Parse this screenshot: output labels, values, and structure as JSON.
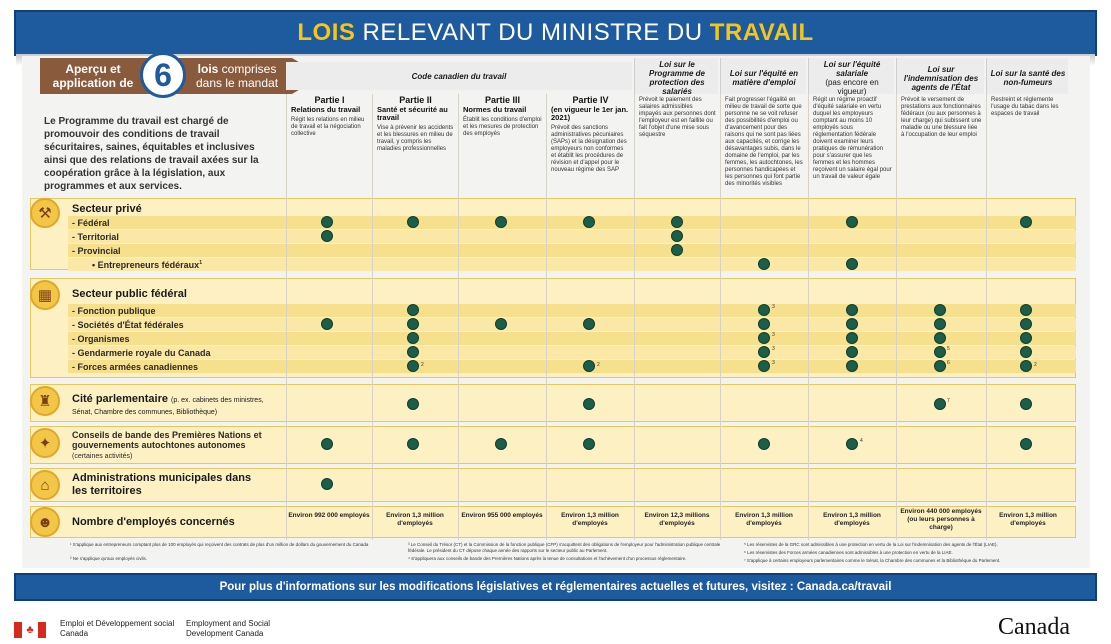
{
  "title": {
    "bold1": "LOIS",
    "mid": " RELEVANT DU MINISTRE DU ",
    "bold2": "TRAVAIL"
  },
  "apercu": {
    "left": "Aperçu et application de",
    "number": "6",
    "right_bold": "lois",
    "right": " comprises dans le mandat"
  },
  "intro": "Le Programme du travail est chargé de promouvoir des conditions de travail sécuritaires, saines, équitables et inclusives ainsi que des relations de travail axées sur la coopération grâce à la législation, aux programmes et aux services.",
  "code_header": "Code canadien du travail",
  "law_headers": [
    "Loi sur le Programme de protection des salariés",
    "Loi sur l'équité en matière d'emploi",
    "Loi sur l'équité salariale",
    "Loi sur l'indemnisation des agents de l'État",
    "Loi sur la santé des non-fumeurs"
  ],
  "equite_salariale_note": "(pas encore en vigueur)",
  "parts": [
    {
      "title": "Partie I",
      "subtitle": "Relations du travail",
      "desc": "Régit les relations en milieu de travail et la négociation collective"
    },
    {
      "title": "Partie II",
      "subtitle": "Santé et sécurité au travail",
      "desc": "Vise à prévenir les accidents et les blessures en milieu de travail, y compris les maladies professionnelles"
    },
    {
      "title": "Partie III",
      "subtitle": "Normes du travail",
      "desc": "Établit les conditions d'emploi et les mesures de protection des employés"
    },
    {
      "title": "Partie IV",
      "subtitle": "(en vigueur le 1er jan. 2021)",
      "desc": "Prévoit des sanctions administratives pécuniaires (SAPs) et la désignation des employeurs non conformes et établit les procédures de révision et d'appel pour le nouveau régime des SAP"
    }
  ],
  "law_descs": [
    "Prévoit le paiement des salaires admissibles impayés aux personnes dont l'employeur est en faillite ou fait l'objet d'une mise sous séquestre",
    "Fait progresser l'égalité en milieu de travail de sorte que personne ne se voit refuser des possibilités d'emploi ou d'avancement pour des raisons qui ne sont pas liées aux capacités, et corrige les désavantages subis, dans le domaine de l'emploi, par les femmes, les autochtones, les personnes handicapées et les personnes qui font partie des minorités visibles",
    "Régit un régime proactif d'équité salariale en vertu duquel les employeurs comptant au moins 10 employés sous réglementation fédérale doivent examiner leurs pratiques de rémunération pour s'assurer que les femmes et les hommes reçoivent un salaire égal pour un travail de valeur égale",
    "Prévoit le versement de prestations aux fonctionnaires fédéraux (ou aux personnes à leur charge) qui subissent une maladie ou une blessure liée à l'occupation de leur emploi",
    "Restreint et réglemente l'usage du tabac dans les espaces de travail"
  ],
  "sections": {
    "prive": {
      "label": "Secteur privé",
      "rows": [
        "- Fédéral",
        "- Territorial",
        "- Provincial",
        "• Entrepreneurs fédéraux"
      ],
      "sup": "1"
    },
    "public": {
      "label": "Secteur public fédéral",
      "rows": [
        "- Fonction publique",
        "- Sociétés d'État fédérales",
        "- Organismes",
        "- Gendarmerie royale du Canada",
        "- Forces armées canadiennes"
      ]
    },
    "cite": {
      "label": "Cité parlementaire",
      "note": "(p. ex. cabinets des ministres, Sénat, Chambre des communes, Bibliothèque)"
    },
    "conseils": {
      "label": "Conseils de bande des Premières Nations et gouvernements autochtones autonomes",
      "note": "(certaines activités)"
    },
    "admin": {
      "label": "Administrations municipales dans les territoires"
    },
    "nombre": {
      "label": "Nombre d'employés concernés"
    }
  },
  "employees": [
    "Environ 992 000 employés",
    "Environ 1,3 million d'employés",
    "Environ 955 000 employés",
    "Environ 1,3 million d'employés",
    "Environ 12,3 millions d'employés",
    "Environ 1,3 million d'employés",
    "Environ 1,3 million d'employés",
    "Environ 440 000 employés (ou leurs personnes à charge)",
    "Environ 1,3 million d'employés"
  ],
  "footnotes": [
    "¹ S'applique aux entrepreneurs comptant plus de 100 employés qui reçoivent des contrats de plus d'un million de dollars du gouvernement du Canada",
    "² Ne s'applique qu'aux employés civils.",
    "³ Le Conseil du Trésor (CT) et la Commission de la fonction publique (CFP) s'acquittent des obligations de l'employeur pour l'administration publique centrale fédérale. Le président du CT dépose chaque année des rapports sur le secteur public au Parlement.",
    "⁴ S'appliquera aux conseils de bande des Premières Nations après la tenue de consultations et l'achèvement d'un processus réglementaire.",
    "⁵ Les réservistes de la GRC sont admissibles à une protection en vertu de la Loi sur l'indemnisation des agents de l'État (LIAE).",
    "⁶ Les réservistes des Forces armées canadiennes sont admissibles à une protection en vertu de la LIAE.",
    "⁷ S'applique à certains employeurs parlementaires comme le Sénat, la Chambre des communes et la Bibliothèque du Parlement."
  ],
  "bottom_bar": "Pour plus d'informations sur les modifications législatives et réglementaires actuelles et futures, visitez : Canada.ca/travail",
  "gov_fr": "Emploi et Développement social Canada",
  "gov_en": "Employment and Social Development Canada",
  "wordmark": "Canada",
  "colors": {
    "navy": "#1e5a9e",
    "gold": "#f5c518",
    "brown": "#8a5a3c",
    "dot": "#1b5e4a",
    "row": "#fdf1c4"
  }
}
